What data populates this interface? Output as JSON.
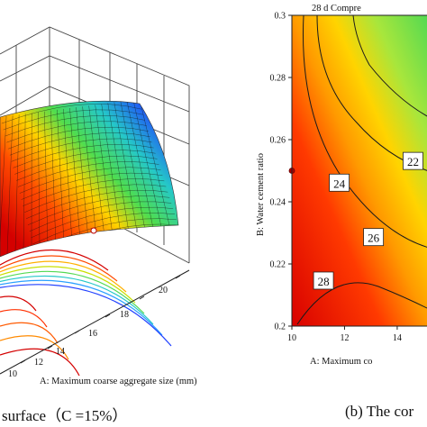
{
  "captions": {
    "left": "surface（C =15%）",
    "right": "(b) The cor"
  },
  "chart_data": [
    {
      "type": "surface3d",
      "xlabel": "A: Maximum coarse aggregate size (mm)",
      "x_ticks": [
        "10",
        "12",
        "14",
        "16",
        "18",
        "20"
      ],
      "colormap": [
        "#d40000",
        "#ff5a00",
        "#ffd000",
        "#52e052",
        "#22c7c7",
        "#1f3cff"
      ],
      "note_visible_fixed_factor": "C =15%"
    },
    {
      "type": "contour",
      "title": "28 d Compre",
      "xlabel": "A: Maximum co",
      "ylabel": "B: Water cement ratio",
      "x_ticks": [
        "10",
        "12",
        "14"
      ],
      "y_ticks": [
        "0.2",
        "0.22",
        "0.24",
        "0.26",
        "0.28",
        "0.3"
      ],
      "xlim": [
        10,
        15.2
      ],
      "ylim": [
        0.2,
        0.3
      ],
      "contour_labels": [
        {
          "value": "22",
          "x": 14.6,
          "y": 0.253
        },
        {
          "value": "24",
          "x": 11.8,
          "y": 0.246
        },
        {
          "value": "26",
          "x": 13.1,
          "y": 0.2285
        },
        {
          "value": "28",
          "x": 11.2,
          "y": 0.2145
        }
      ],
      "design_point": {
        "x": 10,
        "y": 0.25
      },
      "colormap": [
        "#d40000",
        "#ff5a00",
        "#ffd000",
        "#52e052"
      ]
    }
  ]
}
